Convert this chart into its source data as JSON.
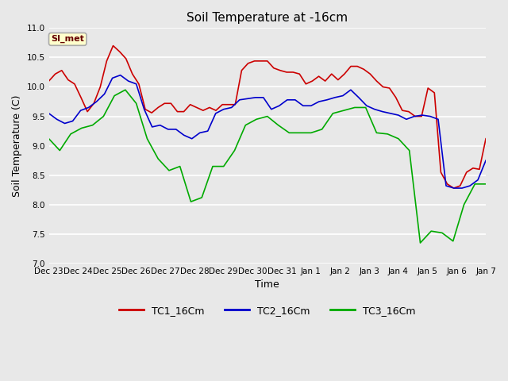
{
  "title": "Soil Temperature at -16cm",
  "xlabel": "Time",
  "ylabel": "Soil Temperature (C)",
  "ylim": [
    7.0,
    11.0
  ],
  "yticks": [
    7.0,
    7.5,
    8.0,
    8.5,
    9.0,
    9.5,
    10.0,
    10.5,
    11.0
  ],
  "fig_bg_color": "#e8e8e8",
  "plot_bg_color": "#e8e8e8",
  "grid_color": "#ffffff",
  "annotation_text": "SI_met",
  "annotation_bg": "#ffffcc",
  "annotation_border": "#aaaaaa",
  "tc1_color": "#cc0000",
  "tc2_color": "#0000cc",
  "tc3_color": "#00aa00",
  "x_labels": [
    "Dec 23",
    "Dec 24",
    "Dec 25",
    "Dec 26",
    "Dec 27",
    "Dec 28",
    "Dec 29",
    "Dec 30",
    "Dec 31",
    "Jan 1",
    "Jan 2",
    "Jan 3",
    "Jan 4",
    "Jan 5",
    "Jan 6",
    "Jan 7"
  ],
  "tc1": [
    10.1,
    10.22,
    10.28,
    10.12,
    10.05,
    9.82,
    9.58,
    9.72,
    10.0,
    10.44,
    10.7,
    10.6,
    10.48,
    10.22,
    10.05,
    9.62,
    9.56,
    9.65,
    9.72,
    9.72,
    9.58,
    9.58,
    9.7,
    9.65,
    9.6,
    9.65,
    9.6,
    9.7,
    9.7,
    9.7,
    10.28,
    10.4,
    10.44,
    10.44,
    10.44,
    10.32,
    10.28,
    10.25,
    10.25,
    10.22,
    10.05,
    10.1,
    10.18,
    10.1,
    10.22,
    10.12,
    10.22,
    10.35,
    10.35,
    10.3,
    10.22,
    10.1,
    10.0,
    9.98,
    9.82,
    9.6,
    9.58,
    9.5,
    9.5,
    9.98,
    9.9,
    8.55,
    8.35,
    8.28,
    8.32,
    8.55,
    8.62,
    8.6,
    9.12
  ],
  "tc2": [
    9.55,
    9.45,
    9.38,
    9.42,
    9.6,
    9.65,
    9.75,
    9.88,
    10.15,
    10.2,
    10.1,
    10.05,
    9.62,
    9.32,
    9.35,
    9.28,
    9.28,
    9.18,
    9.12,
    9.22,
    9.25,
    9.55,
    9.62,
    9.65,
    9.78,
    9.8,
    9.82,
    9.82,
    9.62,
    9.68,
    9.78,
    9.78,
    9.68,
    9.68,
    9.75,
    9.78,
    9.82,
    9.85,
    9.95,
    9.82,
    9.68,
    9.62,
    9.58,
    9.55,
    9.52,
    9.45,
    9.5,
    9.52,
    9.5,
    9.45,
    8.32,
    8.28,
    8.28,
    8.32,
    8.42,
    8.75
  ],
  "tc3": [
    9.12,
    8.92,
    9.2,
    9.3,
    9.35,
    9.5,
    9.85,
    9.95,
    9.72,
    9.12,
    8.78,
    8.58,
    8.65,
    8.05,
    8.12,
    8.65,
    8.65,
    8.92,
    9.35,
    9.45,
    9.5,
    9.35,
    9.22,
    9.22,
    9.22,
    9.28,
    9.55,
    9.6,
    9.65,
    9.65,
    9.22,
    9.2,
    9.12,
    8.92,
    7.35,
    7.55,
    7.52,
    7.38,
    8.0,
    8.35,
    8.35
  ]
}
